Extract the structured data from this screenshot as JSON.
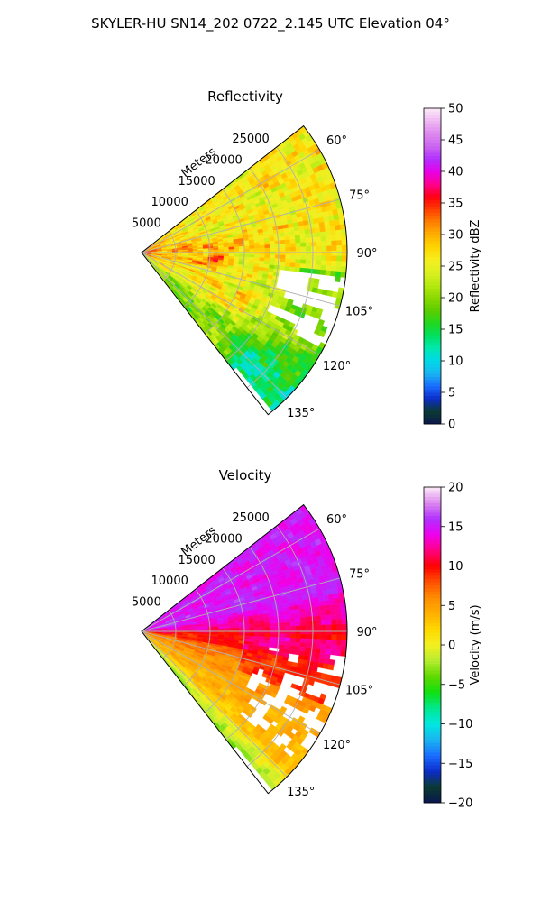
{
  "figure": {
    "suptitle": "SKYLER-HU  SN14_202  0722_2.145 UTC Elevation 04°"
  },
  "chart_data": [
    {
      "type": "heatmap",
      "projection": "polar-sector",
      "title": "Reflectivity",
      "radial_label": "Meters",
      "radial_ticks": [
        5000,
        10000,
        15000,
        20000,
        25000
      ],
      "radial_tick_labels": [
        "5000",
        "10000",
        "15000",
        "20000",
        "25000"
      ],
      "r_max": 30000,
      "theta_range_deg": [
        52,
        142
      ],
      "angle_ticks_deg": [
        60,
        75,
        90,
        105,
        120,
        135
      ],
      "angle_tick_labels": [
        "60°",
        "75°",
        "90°",
        "105°",
        "120°",
        "135°"
      ],
      "grid": true,
      "colorbar": {
        "label": "Reflectivity dBZ",
        "range": [
          0,
          50
        ],
        "ticks": [
          0,
          5,
          10,
          15,
          20,
          25,
          30,
          35,
          40,
          45,
          50
        ],
        "tick_labels": [
          "0",
          "5",
          "10",
          "15",
          "20",
          "25",
          "30",
          "35",
          "40",
          "45",
          "50"
        ],
        "stops": [
          {
            "v": 0,
            "c": "#0a1650"
          },
          {
            "v": 2,
            "c": "#0b3a30"
          },
          {
            "v": 4,
            "c": "#0c2cc8"
          },
          {
            "v": 6,
            "c": "#1a6cff"
          },
          {
            "v": 8,
            "c": "#19b4f0"
          },
          {
            "v": 10,
            "c": "#00d8e8"
          },
          {
            "v": 12,
            "c": "#00e8b0"
          },
          {
            "v": 14,
            "c": "#00e060"
          },
          {
            "v": 16,
            "c": "#20d820"
          },
          {
            "v": 18,
            "c": "#5ccc00"
          },
          {
            "v": 20,
            "c": "#8ad800"
          },
          {
            "v": 22,
            "c": "#b4ea10"
          },
          {
            "v": 24,
            "c": "#dcf020"
          },
          {
            "v": 26,
            "c": "#f6ee20"
          },
          {
            "v": 28,
            "c": "#ffd400"
          },
          {
            "v": 30,
            "c": "#ffb000"
          },
          {
            "v": 32,
            "c": "#ff8000"
          },
          {
            "v": 34,
            "c": "#ff4000"
          },
          {
            "v": 36,
            "c": "#ff0010"
          },
          {
            "v": 38,
            "c": "#ff0090"
          },
          {
            "v": 40,
            "c": "#e800e8"
          },
          {
            "v": 42,
            "c": "#b030ff"
          },
          {
            "v": 44,
            "c": "#cc66f0"
          },
          {
            "v": 46,
            "c": "#dd88ee"
          },
          {
            "v": 48,
            "c": "#eeb8f2"
          },
          {
            "v": 50,
            "c": "#fbeaf8"
          }
        ]
      },
      "field_description": "mostly 22-30 dBZ; 30-38 dBZ streaks near origin and around 80-95 deg; 15-22 dBZ band along 125-140 deg and beyond 95 deg at long range; local ~40 dBZ core near 95 deg, 11000 m"
    },
    {
      "type": "heatmap",
      "projection": "polar-sector",
      "title": "Velocity",
      "radial_label": "Meters",
      "radial_ticks": [
        5000,
        10000,
        15000,
        20000,
        25000
      ],
      "radial_tick_labels": [
        "5000",
        "10000",
        "15000",
        "20000",
        "25000"
      ],
      "r_max": 30000,
      "theta_range_deg": [
        52,
        142
      ],
      "angle_ticks_deg": [
        60,
        75,
        90,
        105,
        120,
        135
      ],
      "angle_tick_labels": [
        "60°",
        "75°",
        "90°",
        "105°",
        "120°",
        "135°"
      ],
      "grid": true,
      "colorbar": {
        "label": "Velocity (m/s)",
        "range": [
          -20,
          20
        ],
        "ticks": [
          -20,
          -15,
          -10,
          -5,
          0,
          5,
          10,
          15,
          20
        ],
        "tick_labels": [
          "−20",
          "−15",
          "−10",
          "−5",
          "0",
          "5",
          "10",
          "15",
          "20"
        ],
        "stops": [
          {
            "v": -20,
            "c": "#0a1650"
          },
          {
            "v": -18,
            "c": "#0b3a30"
          },
          {
            "v": -16,
            "c": "#0c2cc8"
          },
          {
            "v": -14,
            "c": "#1a6cff"
          },
          {
            "v": -12,
            "c": "#19b4f0"
          },
          {
            "v": -10,
            "c": "#00e8e0"
          },
          {
            "v": -8,
            "c": "#00e890"
          },
          {
            "v": -6,
            "c": "#10e010"
          },
          {
            "v": -4,
            "c": "#60d800"
          },
          {
            "v": -2,
            "c": "#b4ec30"
          },
          {
            "v": 0,
            "c": "#f2f020"
          },
          {
            "v": 2,
            "c": "#ffd800"
          },
          {
            "v": 4,
            "c": "#ffb000"
          },
          {
            "v": 6,
            "c": "#ff8c00"
          },
          {
            "v": 8,
            "c": "#ff5000"
          },
          {
            "v": 10,
            "c": "#ff0000"
          },
          {
            "v": 12,
            "c": "#ff0080"
          },
          {
            "v": 14,
            "c": "#ee00ee"
          },
          {
            "v": 16,
            "c": "#b030ff"
          },
          {
            "v": 18,
            "c": "#dd88ee"
          },
          {
            "v": 20,
            "c": "#fbeaf8"
          }
        ]
      },
      "field_description": "about +15 m/s for 55-80 deg, +12 m/s 80-88 deg, +10 m/s near 90-100 deg, +3 to +6 m/s 100-135 deg, near -2 m/s along 135-142 deg"
    }
  ]
}
